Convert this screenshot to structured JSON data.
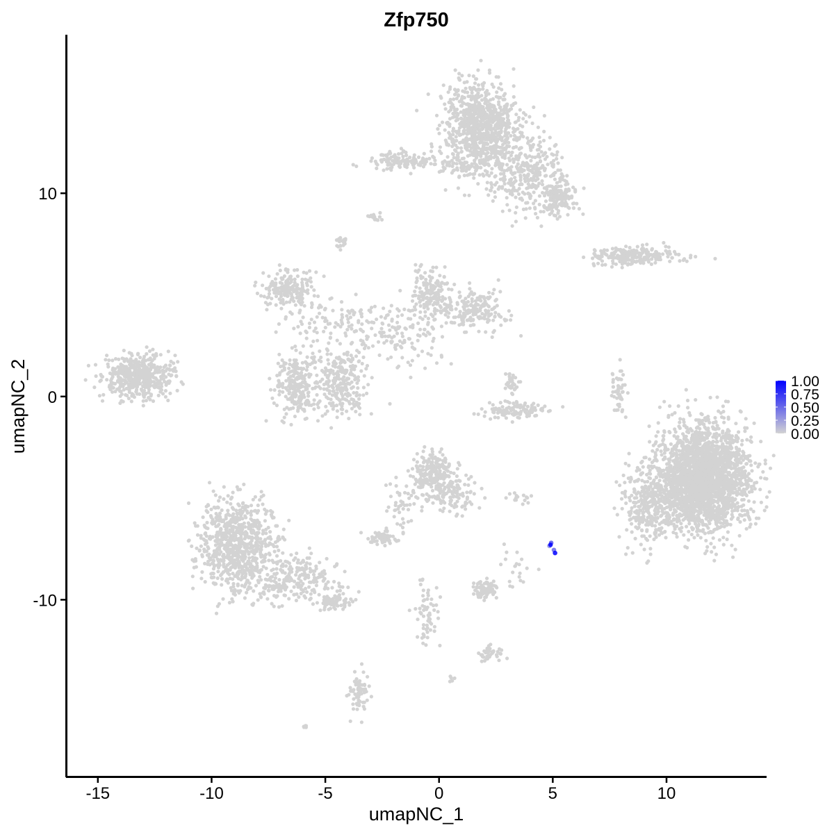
{
  "chart_data": {
    "type": "scatter",
    "title": "Zfp750",
    "xlabel": "umapNC_1",
    "ylabel": "umapNC_2",
    "xlim": [
      -16.4,
      14.4
    ],
    "ylim": [
      -18.7,
      17.8
    ],
    "xticks": [
      -15,
      -10,
      -5,
      0,
      5,
      10
    ],
    "xtick_labels": [
      "-15",
      "-10",
      "-5",
      "0",
      "5",
      "10"
    ],
    "yticks": [
      -10,
      0,
      10
    ],
    "ytick_labels": [
      "-10",
      "0",
      "10"
    ],
    "grid": false,
    "colors": {
      "low": "#d3d3d3",
      "high": "#0000ff"
    },
    "legend": {
      "placement": "right",
      "type": "colorbar",
      "range": [
        0,
        1
      ],
      "ticks": [
        0,
        0.25,
        0.5,
        0.75,
        1
      ],
      "tick_labels": [
        "0.00",
        "0.25",
        "0.50",
        "0.75",
        "1.00"
      ]
    },
    "clusters_approx": [
      {
        "x": 1.8,
        "y": 13.3,
        "sx": 0.8,
        "sy": 1.1,
        "n": 900,
        "value": 0
      },
      {
        "x": 3.8,
        "y": 11.0,
        "sx": 0.9,
        "sy": 0.9,
        "n": 350,
        "value": 0
      },
      {
        "x": 5.3,
        "y": 9.8,
        "sx": 0.4,
        "sy": 0.4,
        "n": 150,
        "value": 0
      },
      {
        "x": -1.7,
        "y": 11.6,
        "sx": 0.7,
        "sy": 0.2,
        "n": 120,
        "value": 0
      },
      {
        "x": 0.9,
        "y": 11.3,
        "sx": 0.6,
        "sy": 0.2,
        "n": 50,
        "value": 0
      },
      {
        "x": 8.6,
        "y": 6.9,
        "sx": 1.0,
        "sy": 0.2,
        "n": 220,
        "value": 0
      },
      {
        "x": -13.2,
        "y": 1.0,
        "sx": 0.8,
        "sy": 0.5,
        "n": 500,
        "value": 0
      },
      {
        "x": -6.6,
        "y": 5.3,
        "sx": 0.6,
        "sy": 0.5,
        "n": 200,
        "value": 0
      },
      {
        "x": -6.2,
        "y": 0.6,
        "sx": 0.5,
        "sy": 0.8,
        "n": 250,
        "value": 0
      },
      {
        "x": -4.3,
        "y": 0.7,
        "sx": 0.5,
        "sy": 0.8,
        "n": 250,
        "value": 0
      },
      {
        "x": -4.2,
        "y": 3.6,
        "sx": 1.2,
        "sy": 0.6,
        "n": 120,
        "value": 0
      },
      {
        "x": -1.5,
        "y": 3.0,
        "sx": 0.9,
        "sy": 0.9,
        "n": 120,
        "value": 0
      },
      {
        "x": -0.4,
        "y": 5.2,
        "sx": 0.4,
        "sy": 0.6,
        "n": 150,
        "value": 0
      },
      {
        "x": 1.5,
        "y": 4.2,
        "sx": 0.7,
        "sy": 0.5,
        "n": 200,
        "value": 0
      },
      {
        "x": 3.2,
        "y": -0.7,
        "sx": 0.7,
        "sy": 0.2,
        "n": 120,
        "value": 0
      },
      {
        "x": 3.2,
        "y": 0.7,
        "sx": 0.2,
        "sy": 0.3,
        "n": 30,
        "value": 0
      },
      {
        "x": 7.9,
        "y": 0.3,
        "sx": 0.15,
        "sy": 0.6,
        "n": 50,
        "value": 0
      },
      {
        "x": 11.6,
        "y": -4.0,
        "sx": 1.0,
        "sy": 1.3,
        "n": 2500,
        "value": 0
      },
      {
        "x": 9.2,
        "y": -5.3,
        "sx": 0.6,
        "sy": 0.9,
        "n": 300,
        "value": 0
      },
      {
        "x": -8.9,
        "y": -7.3,
        "sx": 0.8,
        "sy": 1.2,
        "n": 800,
        "value": 0
      },
      {
        "x": -6.3,
        "y": -9.0,
        "sx": 1.0,
        "sy": 0.6,
        "n": 250,
        "value": 0
      },
      {
        "x": -4.5,
        "y": -10.2,
        "sx": 0.4,
        "sy": 0.2,
        "n": 60,
        "value": 0
      },
      {
        "x": -0.3,
        "y": -3.9,
        "sx": 0.5,
        "sy": 0.6,
        "n": 250,
        "value": 0
      },
      {
        "x": 0.7,
        "y": -4.8,
        "sx": 0.4,
        "sy": 0.5,
        "n": 80,
        "value": 0
      },
      {
        "x": -1.6,
        "y": -5.5,
        "sx": 0.3,
        "sy": 0.6,
        "n": 40,
        "value": 0
      },
      {
        "x": -2.5,
        "y": -6.9,
        "sx": 0.3,
        "sy": 0.15,
        "n": 70,
        "value": 0
      },
      {
        "x": 2.1,
        "y": -9.5,
        "sx": 0.3,
        "sy": 0.2,
        "n": 80,
        "value": 0
      },
      {
        "x": 3.3,
        "y": -8.5,
        "sx": 0.3,
        "sy": 0.5,
        "n": 20,
        "value": 0
      },
      {
        "x": -3.5,
        "y": -14.5,
        "sx": 0.2,
        "sy": 0.5,
        "n": 70,
        "value": 0
      },
      {
        "x": -0.6,
        "y": -10.8,
        "sx": 0.3,
        "sy": 0.9,
        "n": 60,
        "value": 0
      },
      {
        "x": 2.2,
        "y": -12.6,
        "sx": 0.3,
        "sy": 0.2,
        "n": 40,
        "value": 0
      },
      {
        "x": -4.3,
        "y": 7.6,
        "sx": 0.15,
        "sy": 0.2,
        "n": 20,
        "value": 0
      },
      {
        "x": -2.8,
        "y": 8.8,
        "sx": 0.15,
        "sy": 0.1,
        "n": 15,
        "value": 0
      },
      {
        "x": 3.5,
        "y": -5.0,
        "sx": 0.3,
        "sy": 0.1,
        "n": 15,
        "value": 0
      },
      {
        "x": -6.0,
        "y": -16.2,
        "sx": 0.1,
        "sy": 0.1,
        "n": 5,
        "value": 0
      },
      {
        "x": 0.6,
        "y": -13.9,
        "sx": 0.1,
        "sy": 0.1,
        "n": 5,
        "value": 0
      }
    ],
    "expressing_points": [
      {
        "x": 4.85,
        "y": -7.35,
        "value": 0.3
      },
      {
        "x": 4.93,
        "y": -7.2,
        "value": 0.6
      },
      {
        "x": 4.9,
        "y": -7.3,
        "value": 1.0
      },
      {
        "x": 5.05,
        "y": -7.55,
        "value": 0.5
      },
      {
        "x": 5.1,
        "y": -7.7,
        "value": 1.0
      }
    ]
  }
}
